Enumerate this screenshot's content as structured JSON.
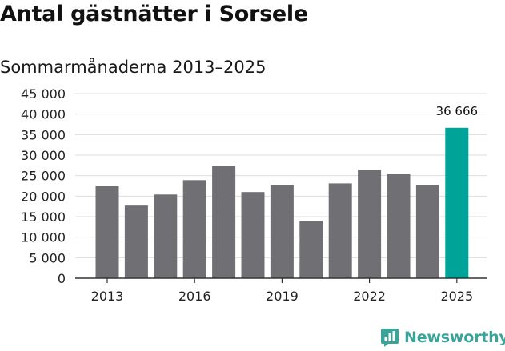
{
  "title": "Antal gästnätter i Sorsele",
  "subtitle": "Sommarmånaderna 2013–2025",
  "brand": {
    "name": "Newsworthy"
  },
  "colors": {
    "bar": "#706f73",
    "highlight": "#00a398",
    "grid": "#dddddd",
    "axis": "#333333",
    "brand": "#3aa39a"
  },
  "chart_data": {
    "type": "bar",
    "title": "Antal gästnätter i Sorsele",
    "subtitle": "Sommarmånaderna 2013–2025",
    "xlabel": "",
    "ylabel": "",
    "categories": [
      "2013",
      "2014",
      "2015",
      "2016",
      "2017",
      "2018",
      "2019",
      "2020",
      "2021",
      "2022",
      "2023",
      "2024",
      "2025"
    ],
    "values": [
      22400,
      17700,
      20400,
      23900,
      27400,
      21000,
      22700,
      14000,
      23100,
      26400,
      25400,
      22700,
      36666
    ],
    "highlight_index": 12,
    "annotation": {
      "index": 12,
      "text": "36 666"
    },
    "x_tick_labels": [
      {
        "index": 0,
        "label": "2013"
      },
      {
        "index": 3,
        "label": "2016"
      },
      {
        "index": 6,
        "label": "2019"
      },
      {
        "index": 9,
        "label": "2022"
      },
      {
        "index": 12,
        "label": "2025"
      }
    ],
    "yticks": [
      0,
      5000,
      10000,
      15000,
      20000,
      25000,
      30000,
      35000,
      40000,
      45000
    ],
    "ytick_labels": [
      "0",
      "5 000",
      "10 000",
      "15 000",
      "20 000",
      "25 000",
      "30 000",
      "35 000",
      "40 000",
      "45 000"
    ],
    "ylim": [
      0,
      45000
    ],
    "grid": true,
    "legend": "none"
  }
}
